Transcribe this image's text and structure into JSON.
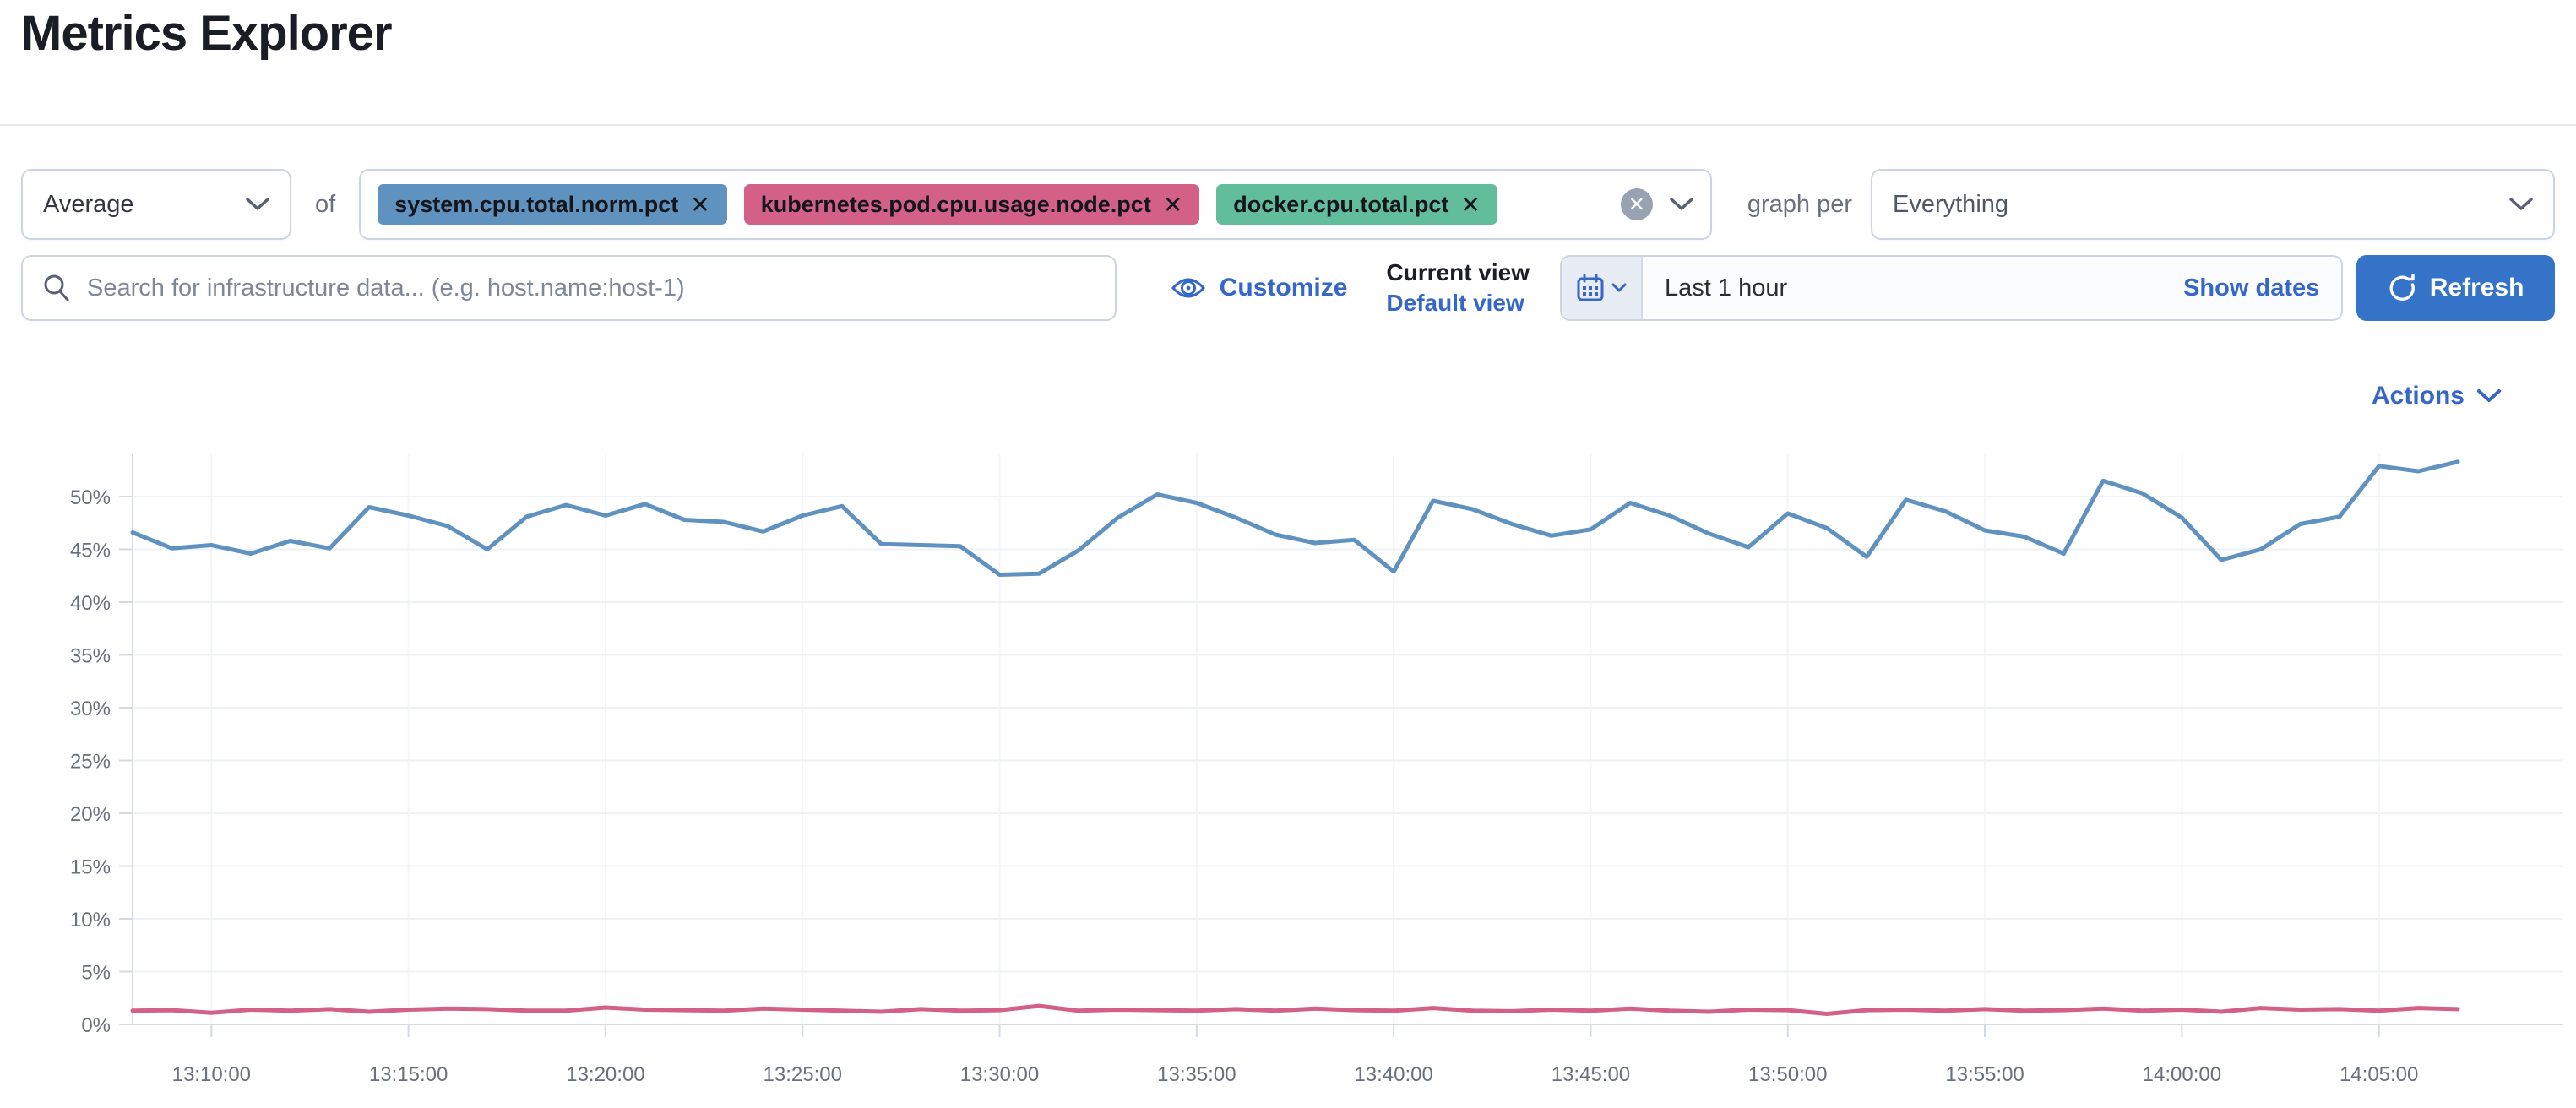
{
  "page": {
    "title": "Metrics Explorer"
  },
  "toolbar": {
    "aggregation_value": "Average",
    "of_label": "of",
    "metrics": [
      {
        "label": "system.cpu.total.norm.pct",
        "color": "#6092C0"
      },
      {
        "label": "kubernetes.pod.cpu.usage.node.pct",
        "color": "#D36086"
      },
      {
        "label": "docker.cpu.total.pct",
        "color": "#61BD9B"
      }
    ],
    "remove_glyph": "✕",
    "clear_glyph": "✕",
    "graph_per_label": "graph per",
    "group_by_value": "Everything"
  },
  "search": {
    "placeholder": "Search for infrastructure data... (e.g. host.name:host-1)"
  },
  "view_controls": {
    "customize_label": "Customize",
    "current_view_label": "Current view",
    "default_view_label": "Default view"
  },
  "time_picker": {
    "value": "Last 1 hour",
    "show_dates_label": "Show dates",
    "refresh_label": "Refresh"
  },
  "actions": {
    "label": "Actions"
  },
  "colors": {
    "link_blue": "#3567c9",
    "button_blue": "#3473c8",
    "series_blue": "#6092C0",
    "series_pink": "#D36086",
    "tag_green": "#61BD9B",
    "axis_text": "#69707d",
    "grid_line": "#eef1f6",
    "axis_line": "#d4d9e3"
  },
  "chart_data": {
    "type": "line",
    "title": "",
    "xlabel": "",
    "ylabel": "",
    "grid": true,
    "legend_position": "none",
    "ylim": [
      0,
      54.5
    ],
    "y_ticks": [
      {
        "label": "0%",
        "value": 0
      },
      {
        "label": "5%",
        "value": 5
      },
      {
        "label": "10%",
        "value": 10
      },
      {
        "label": "15%",
        "value": 15
      },
      {
        "label": "20%",
        "value": 20
      },
      {
        "label": "25%",
        "value": 25
      },
      {
        "label": "30%",
        "value": 30
      },
      {
        "label": "35%",
        "value": 35
      },
      {
        "label": "40%",
        "value": 40
      },
      {
        "label": "45%",
        "value": 45
      },
      {
        "label": "50%",
        "value": 50
      }
    ],
    "x_ticks": [
      {
        "label": "13:10:00",
        "index": 2
      },
      {
        "label": "13:15:00",
        "index": 7
      },
      {
        "label": "13:20:00",
        "index": 12
      },
      {
        "label": "13:25:00",
        "index": 17
      },
      {
        "label": "13:30:00",
        "index": 22
      },
      {
        "label": "13:35:00",
        "index": 27
      },
      {
        "label": "13:40:00",
        "index": 32
      },
      {
        "label": "13:45:00",
        "index": 37
      },
      {
        "label": "13:50:00",
        "index": 42
      },
      {
        "label": "13:55:00",
        "index": 47
      },
      {
        "label": "14:00:00",
        "index": 52
      },
      {
        "label": "14:05:00",
        "index": 57
      }
    ],
    "series": [
      {
        "name": "system.cpu.total.norm.pct (avg)",
        "color": "#6092C0",
        "values": [
          46.6,
          45.1,
          45.4,
          44.6,
          45.8,
          45.1,
          49.0,
          48.2,
          47.2,
          45.0,
          48.1,
          49.2,
          48.2,
          49.3,
          47.8,
          47.6,
          46.7,
          48.2,
          49.1,
          45.5,
          45.4,
          45.3,
          42.6,
          42.7,
          44.9,
          48.0,
          50.2,
          49.4,
          48.0,
          46.4,
          45.6,
          45.9,
          42.9,
          49.6,
          48.8,
          47.4,
          46.3,
          46.9,
          49.4,
          48.2,
          46.5,
          45.2,
          48.4,
          47.0,
          44.3,
          49.7,
          48.6,
          46.8,
          46.2,
          44.6,
          51.5,
          50.3,
          48.0,
          44.0,
          45.0,
          47.4,
          48.1,
          52.9,
          52.4,
          53.3
        ]
      },
      {
        "name": "kubernetes.pod.cpu.usage.node.pct (avg)",
        "color": "#D36086",
        "values": [
          1.3,
          1.35,
          1.1,
          1.4,
          1.3,
          1.45,
          1.2,
          1.4,
          1.5,
          1.45,
          1.3,
          1.3,
          1.6,
          1.4,
          1.35,
          1.3,
          1.5,
          1.4,
          1.3,
          1.2,
          1.45,
          1.3,
          1.35,
          1.75,
          1.3,
          1.4,
          1.35,
          1.3,
          1.45,
          1.3,
          1.5,
          1.35,
          1.3,
          1.55,
          1.3,
          1.25,
          1.4,
          1.3,
          1.5,
          1.3,
          1.2,
          1.4,
          1.35,
          1.0,
          1.35,
          1.4,
          1.3,
          1.45,
          1.3,
          1.35,
          1.5,
          1.3,
          1.4,
          1.2,
          1.55,
          1.4,
          1.45,
          1.3,
          1.55,
          1.45
        ]
      }
    ]
  }
}
